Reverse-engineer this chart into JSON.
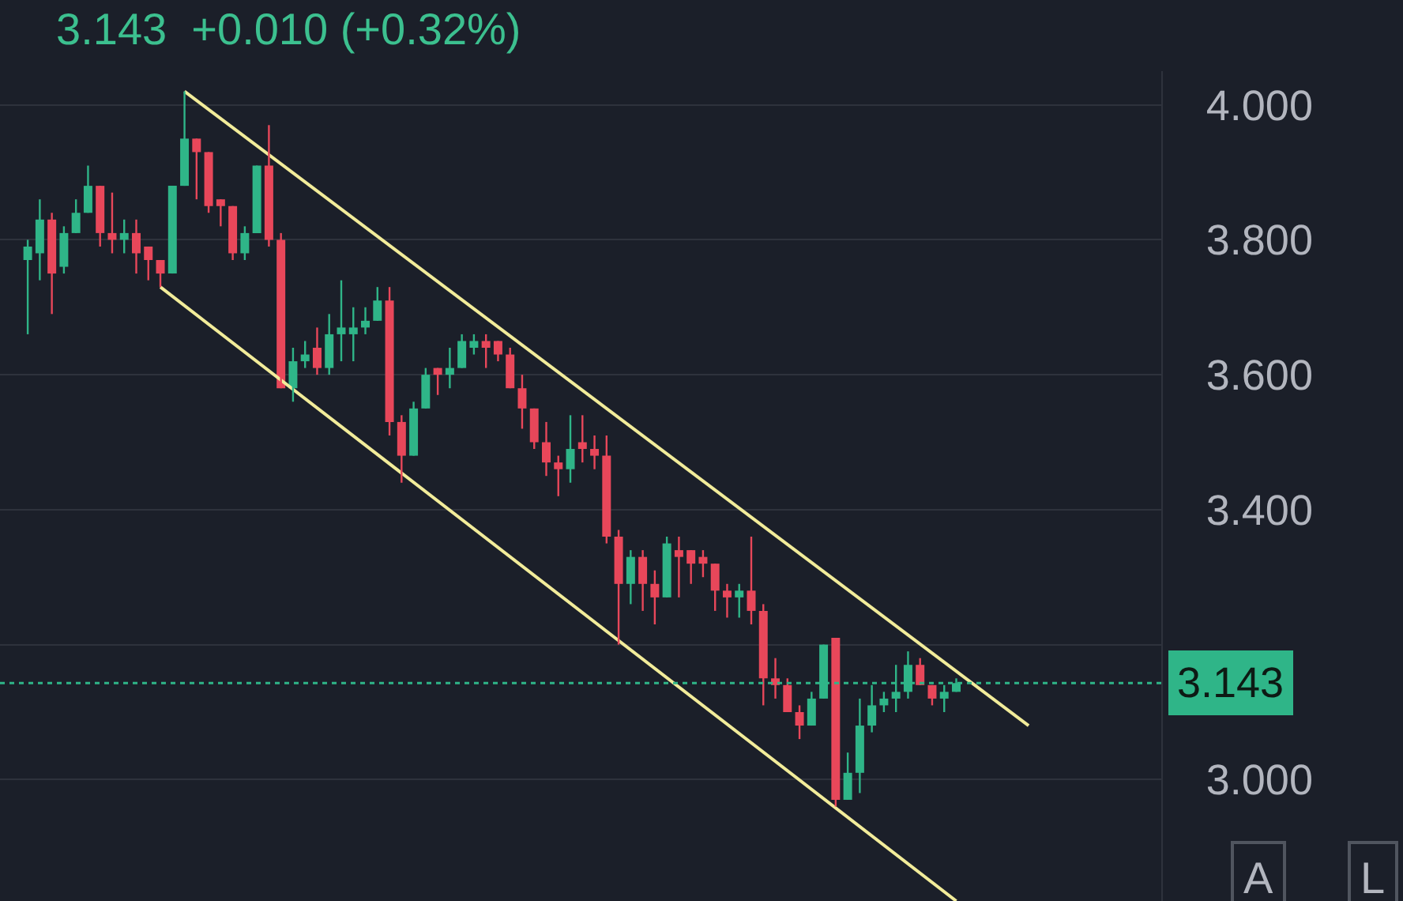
{
  "chart_data": {
    "type": "candlestick",
    "title": "3.143  +0.010 (+0.32%)",
    "categories": [
      null,
      null,
      null,
      null,
      null,
      null,
      null,
      null,
      null,
      null,
      null,
      null,
      null,
      null,
      null,
      null,
      null,
      null,
      null,
      null,
      null,
      null,
      null,
      null,
      null,
      null,
      null,
      null,
      null,
      null,
      null,
      null,
      null,
      null,
      null,
      null,
      null,
      null,
      null,
      null,
      null,
      null,
      null,
      null,
      null,
      null,
      null,
      null,
      null,
      null,
      null,
      null,
      null,
      null,
      null,
      null,
      null,
      null,
      null,
      null,
      null,
      null,
      null,
      null,
      null,
      null,
      null,
      null,
      null,
      null,
      null,
      null,
      null,
      null,
      null,
      null,
      null,
      null,
      null,
      null,
      null,
      null,
      null,
      null
    ],
    "series": [
      {
        "ohlc": [
          [
            3.77,
            3.8,
            3.66,
            3.79
          ],
          [
            3.78,
            3.86,
            3.74,
            3.83
          ],
          [
            3.83,
            3.84,
            3.69,
            3.75
          ],
          [
            3.76,
            3.82,
            3.75,
            3.81
          ],
          [
            3.81,
            3.86,
            3.81,
            3.84
          ],
          [
            3.84,
            3.91,
            3.84,
            3.88
          ],
          [
            3.88,
            3.88,
            3.79,
            3.81
          ],
          [
            3.81,
            3.87,
            3.78,
            3.8
          ],
          [
            3.8,
            3.83,
            3.78,
            3.81
          ],
          [
            3.81,
            3.83,
            3.75,
            3.78
          ],
          [
            3.79,
            3.79,
            3.74,
            3.77
          ],
          [
            3.77,
            3.77,
            3.73,
            3.75
          ],
          [
            3.75,
            3.88,
            3.75,
            3.88
          ],
          [
            3.88,
            4.02,
            3.88,
            3.95
          ],
          [
            3.95,
            3.95,
            3.86,
            3.93
          ],
          [
            3.93,
            3.93,
            3.84,
            3.85
          ],
          [
            3.86,
            3.86,
            3.82,
            3.85
          ],
          [
            3.85,
            3.85,
            3.77,
            3.78
          ],
          [
            3.78,
            3.82,
            3.77,
            3.81
          ],
          [
            3.81,
            3.91,
            3.81,
            3.91
          ],
          [
            3.91,
            3.97,
            3.79,
            3.8
          ],
          [
            3.8,
            3.81,
            3.58,
            3.58
          ],
          [
            3.58,
            3.64,
            3.56,
            3.62
          ],
          [
            3.62,
            3.65,
            3.61,
            3.63
          ],
          [
            3.64,
            3.67,
            3.6,
            3.61
          ],
          [
            3.61,
            3.69,
            3.6,
            3.66
          ],
          [
            3.66,
            3.74,
            3.62,
            3.67
          ],
          [
            3.66,
            3.7,
            3.62,
            3.67
          ],
          [
            3.67,
            3.7,
            3.66,
            3.68
          ],
          [
            3.68,
            3.73,
            3.68,
            3.71
          ],
          [
            3.71,
            3.73,
            3.51,
            3.53
          ],
          [
            3.53,
            3.54,
            3.44,
            3.48
          ],
          [
            3.48,
            3.56,
            3.48,
            3.55
          ],
          [
            3.55,
            3.61,
            3.55,
            3.6
          ],
          [
            3.61,
            3.61,
            3.57,
            3.6
          ],
          [
            3.6,
            3.64,
            3.58,
            3.61
          ],
          [
            3.61,
            3.66,
            3.61,
            3.65
          ],
          [
            3.64,
            3.66,
            3.63,
            3.65
          ],
          [
            3.65,
            3.66,
            3.61,
            3.64
          ],
          [
            3.65,
            3.65,
            3.62,
            3.63
          ],
          [
            3.63,
            3.64,
            3.58,
            3.58
          ],
          [
            3.58,
            3.6,
            3.52,
            3.55
          ],
          [
            3.55,
            3.55,
            3.49,
            3.5
          ],
          [
            3.5,
            3.53,
            3.45,
            3.47
          ],
          [
            3.47,
            3.48,
            3.42,
            3.46
          ],
          [
            3.46,
            3.54,
            3.44,
            3.49
          ],
          [
            3.5,
            3.54,
            3.47,
            3.49
          ],
          [
            3.49,
            3.51,
            3.46,
            3.48
          ],
          [
            3.48,
            3.51,
            3.35,
            3.36
          ],
          [
            3.36,
            3.37,
            3.2,
            3.29
          ],
          [
            3.29,
            3.34,
            3.26,
            3.33
          ],
          [
            3.33,
            3.34,
            3.25,
            3.29
          ],
          [
            3.29,
            3.31,
            3.23,
            3.27
          ],
          [
            3.27,
            3.36,
            3.27,
            3.35
          ],
          [
            3.34,
            3.36,
            3.27,
            3.33
          ],
          [
            3.34,
            3.34,
            3.29,
            3.32
          ],
          [
            3.33,
            3.34,
            3.3,
            3.32
          ],
          [
            3.32,
            3.32,
            3.25,
            3.28
          ],
          [
            3.28,
            3.29,
            3.24,
            3.27
          ],
          [
            3.27,
            3.29,
            3.24,
            3.28
          ],
          [
            3.28,
            3.36,
            3.23,
            3.25
          ],
          [
            3.25,
            3.26,
            3.11,
            3.15
          ],
          [
            3.15,
            3.18,
            3.12,
            3.14
          ],
          [
            3.14,
            3.15,
            3.1,
            3.1
          ],
          [
            3.1,
            3.11,
            3.06,
            3.08
          ],
          [
            3.08,
            3.13,
            3.08,
            3.12
          ],
          [
            3.12,
            3.2,
            3.12,
            3.2
          ],
          [
            3.21,
            3.21,
            2.96,
            2.97
          ],
          [
            2.97,
            3.04,
            2.97,
            3.01
          ],
          [
            3.01,
            3.12,
            2.98,
            3.08
          ],
          [
            3.08,
            3.14,
            3.07,
            3.11
          ],
          [
            3.11,
            3.13,
            3.1,
            3.12
          ],
          [
            3.12,
            3.17,
            3.1,
            3.13
          ],
          [
            3.13,
            3.19,
            3.12,
            3.17
          ],
          [
            3.17,
            3.18,
            3.14,
            3.14
          ],
          [
            3.14,
            3.14,
            3.11,
            3.12
          ],
          [
            3.12,
            3.14,
            3.1,
            3.13
          ],
          [
            3.13,
            3.15,
            3.13,
            3.143
          ],
          null,
          null,
          null,
          null,
          null,
          null
        ],
        "colors": [
          "#2fb588",
          "#2fb588",
          "#e8475a",
          "#2fb588",
          "#2fb588",
          "#2fb588",
          "#e8475a",
          "#e8475a",
          "#2fb588",
          "#e8475a",
          "#e8475a",
          "#e8475a",
          "#2fb588",
          "#2fb588",
          "#e8475a",
          "#e8475a",
          "#e8475a",
          "#e8475a",
          "#2fb588",
          "#2fb588",
          "#e8475a",
          "#e8475a",
          "#2fb588",
          "#2fb588",
          "#e8475a",
          "#2fb588",
          "#2fb588",
          "#2fb588",
          "#2fb588",
          "#2fb588",
          "#e8475a",
          "#e8475a",
          "#2fb588",
          "#2fb588",
          "#e8475a",
          "#2fb588",
          "#2fb588",
          "#2fb588",
          "#e8475a",
          "#e8475a",
          "#e8475a",
          "#e8475a",
          "#e8475a",
          "#e8475a",
          "#e8475a",
          "#2fb588",
          "#e8475a",
          "#e8475a",
          "#e8475a",
          "#e8475a",
          "#2fb588",
          "#e8475a",
          "#e8475a",
          "#2fb588",
          "#e8475a",
          "#e8475a",
          "#e8475a",
          "#e8475a",
          "#e8475a",
          "#2fb588",
          "#e8475a",
          "#e8475a",
          "#e8475a",
          "#e8475a",
          "#e8475a",
          "#2fb588",
          "#2fb588",
          "#e8475a",
          "#2fb588",
          "#2fb588",
          "#2fb588",
          "#2fb588",
          "#2fb588",
          "#2fb588",
          "#e8475a",
          "#e8475a",
          "#2fb588",
          "#2fb588",
          null,
          null,
          null,
          null,
          null,
          null
        ]
      },
      {
        "type": "line",
        "color": "#f2ec9a",
        "values": [
          null,
          null,
          null,
          null,
          null,
          null,
          null,
          null,
          null,
          null,
          null,
          null,
          null,
          4.02,
          null,
          null,
          null,
          null,
          null,
          null,
          null,
          null,
          null,
          null,
          null,
          null,
          null,
          null,
          null,
          null,
          null,
          null,
          null,
          null,
          null,
          null,
          null,
          null,
          null,
          null,
          null,
          null,
          null,
          null,
          null,
          null,
          null,
          null,
          null,
          null,
          null,
          null,
          null,
          null,
          null,
          null,
          null,
          null,
          null,
          null,
          null,
          null,
          null,
          null,
          null,
          null,
          null,
          null,
          null,
          null,
          null,
          null,
          null,
          null,
          null,
          null,
          null,
          null,
          null,
          null,
          null,
          null,
          null,
          3.08
        ]
      },
      {
        "type": "line",
        "color": "#f2ec9a",
        "values": [
          null,
          null,
          null,
          null,
          null,
          null,
          null,
          null,
          null,
          null,
          null,
          3.73,
          null,
          null,
          null,
          null,
          null,
          null,
          null,
          null,
          null,
          null,
          null,
          null,
          null,
          null,
          null,
          null,
          null,
          null,
          null,
          null,
          null,
          null,
          null,
          null,
          null,
          null,
          null,
          null,
          null,
          null,
          null,
          null,
          null,
          null,
          null,
          null,
          null,
          null,
          null,
          null,
          null,
          null,
          null,
          null,
          null,
          null,
          null,
          null,
          null,
          null,
          null,
          null,
          null,
          null,
          null,
          null,
          null,
          null,
          null,
          null,
          null,
          null,
          null,
          null,
          null,
          2.82,
          null,
          null,
          null,
          null,
          null,
          null
        ]
      }
    ],
    "ylim": [
      2.82,
      4.05
    ],
    "yticks": [
      {
        "value": 3.0,
        "label": "3.000"
      },
      {
        "value": 3.2,
        "label": null
      },
      {
        "value": 3.4,
        "label": "3.400"
      },
      {
        "value": 3.6,
        "label": "3.600"
      },
      {
        "value": 3.8,
        "label": "3.800"
      },
      {
        "value": 4.0,
        "label": "4.000"
      }
    ],
    "ref_lines": [
      {
        "axis": "y",
        "value": 3.143,
        "label": "3.143",
        "color": "#2fb588",
        "line_style": "dotted"
      }
    ],
    "annotations": [
      "A",
      "L"
    ],
    "grid": "y",
    "tick_labels": "y"
  }
}
